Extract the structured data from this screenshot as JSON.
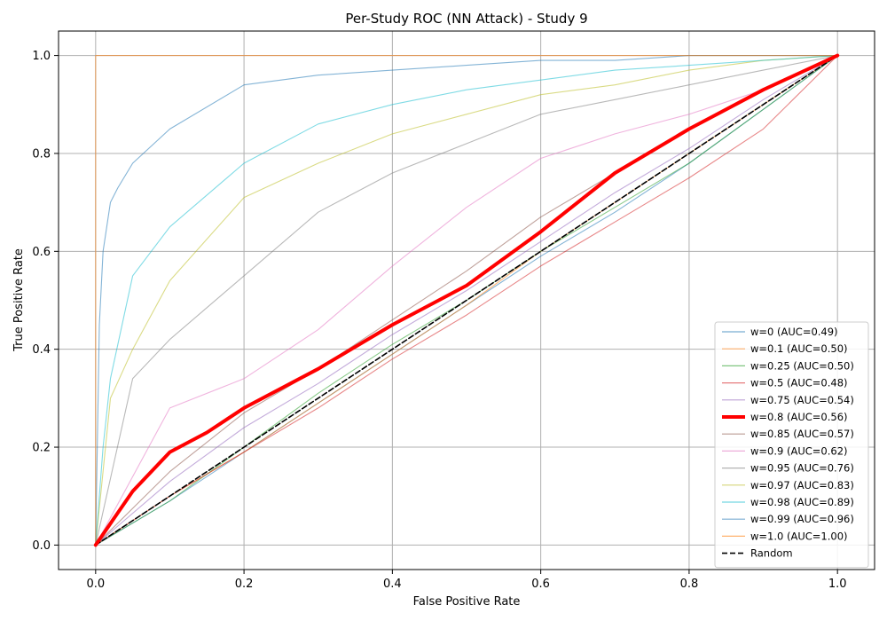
{
  "chart_data": {
    "type": "line",
    "title": "Per-Study ROC (NN Attack) - Study 9",
    "xlabel": "False Positive Rate",
    "ylabel": "True Positive Rate",
    "xlim": [
      -0.05,
      1.05
    ],
    "ylim": [
      -0.05,
      1.05
    ],
    "xticks": [
      "0.0",
      "0.2",
      "0.4",
      "0.6",
      "0.8",
      "1.0"
    ],
    "yticks": [
      "0.0",
      "0.2",
      "0.4",
      "0.6",
      "0.8",
      "1.0"
    ],
    "grid": true,
    "legend_position": "lower-right",
    "series": [
      {
        "name": "w=0 (AUC=0.49)",
        "color": "#1f77b4",
        "x": [
          0,
          0.1,
          0.2,
          0.3,
          0.4,
          0.5,
          0.6,
          0.7,
          0.8,
          0.9,
          1
        ],
        "y": [
          0,
          0.09,
          0.19,
          0.29,
          0.39,
          0.49,
          0.59,
          0.68,
          0.78,
          0.89,
          1
        ]
      },
      {
        "name": "w=0.1 (AUC=0.50)",
        "color": "#ff7f0e",
        "x": [
          0,
          0.1,
          0.2,
          0.3,
          0.4,
          0.5,
          0.6,
          0.7,
          0.8,
          0.9,
          1
        ],
        "y": [
          0,
          0.1,
          0.19,
          0.29,
          0.39,
          0.49,
          0.6,
          0.7,
          0.8,
          0.9,
          1
        ]
      },
      {
        "name": "w=0.25 (AUC=0.50)",
        "color": "#2ca02c",
        "x": [
          0,
          0.1,
          0.2,
          0.3,
          0.4,
          0.5,
          0.6,
          0.7,
          0.8,
          0.9,
          1
        ],
        "y": [
          0,
          0.09,
          0.2,
          0.31,
          0.41,
          0.5,
          0.6,
          0.69,
          0.78,
          0.89,
          1
        ]
      },
      {
        "name": "w=0.5 (AUC=0.48)",
        "color": "#d62728",
        "x": [
          0,
          0.1,
          0.2,
          0.3,
          0.4,
          0.5,
          0.6,
          0.7,
          0.8,
          0.9,
          1
        ],
        "y": [
          0,
          0.1,
          0.19,
          0.28,
          0.38,
          0.47,
          0.57,
          0.66,
          0.75,
          0.85,
          1
        ]
      },
      {
        "name": "w=0.75 (AUC=0.54)",
        "color": "#9467bd",
        "x": [
          0,
          0.1,
          0.2,
          0.3,
          0.4,
          0.5,
          0.6,
          0.7,
          0.8,
          0.9,
          1
        ],
        "y": [
          0,
          0.13,
          0.24,
          0.33,
          0.43,
          0.52,
          0.62,
          0.72,
          0.81,
          0.91,
          1
        ]
      },
      {
        "name": "w=0.8 (AUC=0.56)",
        "color": "#ff0000",
        "highlight": true,
        "x": [
          0,
          0.05,
          0.1,
          0.15,
          0.2,
          0.3,
          0.4,
          0.5,
          0.6,
          0.7,
          0.8,
          0.9,
          1
        ],
        "y": [
          0,
          0.11,
          0.19,
          0.23,
          0.28,
          0.36,
          0.45,
          0.53,
          0.64,
          0.76,
          0.85,
          0.93,
          1
        ]
      },
      {
        "name": "w=0.85 (AUC=0.57)",
        "color": "#8c564b",
        "x": [
          0,
          0.1,
          0.2,
          0.3,
          0.4,
          0.5,
          0.6,
          0.7,
          0.8,
          0.9,
          1
        ],
        "y": [
          0,
          0.15,
          0.27,
          0.36,
          0.46,
          0.56,
          0.67,
          0.76,
          0.85,
          0.93,
          1
        ]
      },
      {
        "name": "w=0.9 (AUC=0.62)",
        "color": "#e377c2",
        "x": [
          0,
          0.1,
          0.2,
          0.3,
          0.4,
          0.5,
          0.6,
          0.7,
          0.8,
          0.9,
          1
        ],
        "y": [
          0,
          0.28,
          0.34,
          0.44,
          0.57,
          0.69,
          0.79,
          0.84,
          0.88,
          0.93,
          1
        ]
      },
      {
        "name": "w=0.95 (AUC=0.76)",
        "color": "#7f7f7f",
        "x": [
          0,
          0.05,
          0.1,
          0.2,
          0.3,
          0.4,
          0.5,
          0.6,
          0.7,
          0.8,
          0.9,
          1
        ],
        "y": [
          0,
          0.34,
          0.42,
          0.55,
          0.68,
          0.76,
          0.82,
          0.88,
          0.91,
          0.94,
          0.97,
          1
        ]
      },
      {
        "name": "w=0.97 (AUC=0.83)",
        "color": "#bcbd22",
        "x": [
          0,
          0.02,
          0.05,
          0.1,
          0.2,
          0.3,
          0.4,
          0.5,
          0.6,
          0.7,
          0.8,
          0.9,
          1
        ],
        "y": [
          0,
          0.3,
          0.4,
          0.54,
          0.71,
          0.78,
          0.84,
          0.88,
          0.92,
          0.94,
          0.97,
          0.99,
          1
        ]
      },
      {
        "name": "w=0.98 (AUC=0.89)",
        "color": "#17becf",
        "x": [
          0,
          0.01,
          0.02,
          0.05,
          0.1,
          0.2,
          0.3,
          0.4,
          0.5,
          0.6,
          0.7,
          0.8,
          0.9,
          1
        ],
        "y": [
          0,
          0.2,
          0.34,
          0.55,
          0.65,
          0.78,
          0.86,
          0.9,
          0.93,
          0.95,
          0.97,
          0.98,
          0.99,
          1
        ]
      },
      {
        "name": "w=0.99 (AUC=0.96)",
        "color": "#1f77b4",
        "x": [
          0,
          0.005,
          0.01,
          0.02,
          0.03,
          0.05,
          0.1,
          0.2,
          0.3,
          0.4,
          0.5,
          0.6,
          0.7,
          0.8,
          0.9,
          1
        ],
        "y": [
          0,
          0.45,
          0.6,
          0.7,
          0.73,
          0.78,
          0.85,
          0.94,
          0.96,
          0.97,
          0.98,
          0.99,
          0.99,
          1,
          1,
          1
        ]
      },
      {
        "name": "w=1.0 (AUC=1.00)",
        "color": "#ff7f0e",
        "x": [
          0,
          0,
          1
        ],
        "y": [
          0,
          1,
          1
        ]
      },
      {
        "name": "Random",
        "color": "#000000",
        "dashed": true,
        "x": [
          0,
          1
        ],
        "y": [
          0,
          1
        ]
      }
    ]
  }
}
